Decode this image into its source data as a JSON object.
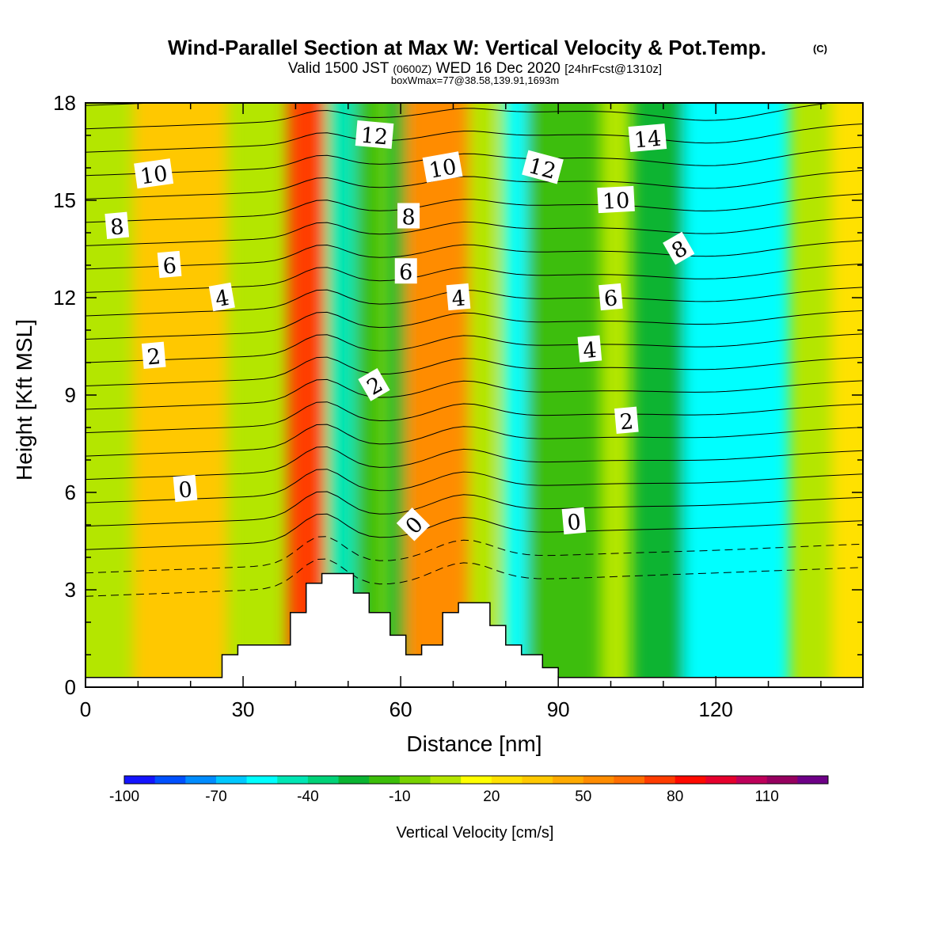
{
  "title": {
    "main": "Wind-Parallel Section at Max W: Vertical Velocity & Pot.Temp.",
    "copyright": "(C)",
    "valid_prefix": "Valid 1500 JST",
    "valid_utc": "(0600Z)",
    "valid_date": "WED 16 Dec 2020",
    "forecast": "[24hrFcst@1310z]",
    "box": "boxWmax=77@38.58,139.91,1693m"
  },
  "chart_data": {
    "type": "heatmap",
    "xlabel": "Distance [nm]",
    "ylabel": "Height [Kft MSL]",
    "xlim": [
      0,
      148
    ],
    "ylim": [
      0,
      18
    ],
    "xticks": [
      0,
      30,
      60,
      90,
      120
    ],
    "yticks": [
      0,
      3,
      6,
      9,
      12,
      15,
      18
    ],
    "colorbar": {
      "title": "Vertical Velocity [cm/s]",
      "min": -100,
      "max": 130,
      "step": 10,
      "tick_labels": [
        -100,
        -70,
        -40,
        -10,
        20,
        50,
        80,
        110
      ],
      "colors": [
        "#1414ff",
        "#0050ff",
        "#008cff",
        "#00c8ff",
        "#00ffff",
        "#00e6b4",
        "#00d278",
        "#0ab432",
        "#3cbe0a",
        "#78d200",
        "#b4e600",
        "#ffff00",
        "#ffe100",
        "#ffc800",
        "#ffaa00",
        "#ff8c00",
        "#ff6e00",
        "#ff3c00",
        "#ff0a00",
        "#e6002d",
        "#be005a",
        "#96005f",
        "#6e0087"
      ]
    },
    "terrain_kft": [
      [
        0,
        0.3
      ],
      [
        26,
        0.3
      ],
      [
        26,
        1.0
      ],
      [
        29,
        1.0
      ],
      [
        29,
        1.3
      ],
      [
        39,
        1.3
      ],
      [
        39,
        2.3
      ],
      [
        42,
        2.3
      ],
      [
        42,
        3.2
      ],
      [
        45,
        3.2
      ],
      [
        45,
        3.5
      ],
      [
        51,
        3.5
      ],
      [
        51,
        2.9
      ],
      [
        54,
        2.9
      ],
      [
        54,
        2.3
      ],
      [
        58,
        2.3
      ],
      [
        58,
        1.6
      ],
      [
        61,
        1.6
      ],
      [
        61,
        1.0
      ],
      [
        64,
        1.0
      ],
      [
        64,
        1.3
      ],
      [
        68,
        1.3
      ],
      [
        68,
        2.3
      ],
      [
        71,
        2.3
      ],
      [
        71,
        2.6
      ],
      [
        77,
        2.6
      ],
      [
        77,
        1.9
      ],
      [
        80,
        1.9
      ],
      [
        80,
        1.3
      ],
      [
        83,
        1.3
      ],
      [
        83,
        1.0
      ],
      [
        87,
        1.0
      ],
      [
        87,
        0.6
      ],
      [
        90,
        0.6
      ],
      [
        90,
        0.3
      ],
      [
        148,
        0.3
      ]
    ],
    "vertical_velocity_bands": [
      {
        "x": 18,
        "width": 18,
        "value": 30
      },
      {
        "x": 42,
        "width": 7,
        "value": 75
      },
      {
        "x": 49,
        "width": 6,
        "value": -50
      },
      {
        "x": 54,
        "width": 5,
        "value": -20
      },
      {
        "x": 60,
        "width": 5,
        "value": -30
      },
      {
        "x": 67,
        "width": 12,
        "value": 50
      },
      {
        "x": 76,
        "width": 5,
        "value": 0
      },
      {
        "x": 83,
        "width": 7,
        "value": -60
      },
      {
        "x": 91,
        "width": 14,
        "value": -20
      },
      {
        "x": 110,
        "width": 12,
        "value": -30
      },
      {
        "x": 124,
        "width": 20,
        "value": -60
      },
      {
        "x": 146,
        "width": 8,
        "value": 20
      }
    ],
    "contour_labels": [
      {
        "text": "0",
        "x": 19,
        "y": 6.1,
        "angle": -5
      },
      {
        "text": "0",
        "x": 62.5,
        "y": 5.0,
        "angle": -45
      },
      {
        "text": "0",
        "x": 93,
        "y": 5.1,
        "angle": -5
      },
      {
        "text": "2",
        "x": 13,
        "y": 10.2,
        "angle": -5
      },
      {
        "text": "2",
        "x": 55,
        "y": 9.3,
        "angle": -30
      },
      {
        "text": "2",
        "x": 103,
        "y": 8.2,
        "angle": -5
      },
      {
        "text": "4",
        "x": 26,
        "y": 12.0,
        "angle": -10
      },
      {
        "text": "4",
        "x": 71,
        "y": 12.0,
        "angle": -5
      },
      {
        "text": "4",
        "x": 96,
        "y": 10.4,
        "angle": -5
      },
      {
        "text": "6",
        "x": 16,
        "y": 13.0,
        "angle": -5
      },
      {
        "text": "6",
        "x": 61,
        "y": 12.8,
        "angle": 0
      },
      {
        "text": "6",
        "x": 100,
        "y": 12.0,
        "angle": -5
      },
      {
        "text": "8",
        "x": 6,
        "y": 14.2,
        "angle": -5
      },
      {
        "text": "8",
        "x": 61.5,
        "y": 14.5,
        "angle": 0
      },
      {
        "text": "8",
        "x": 113,
        "y": 13.5,
        "angle": -30
      },
      {
        "text": "10",
        "x": 13,
        "y": 15.8,
        "angle": -8
      },
      {
        "text": "10",
        "x": 68,
        "y": 16.0,
        "angle": -10
      },
      {
        "text": "10",
        "x": 101,
        "y": 15.0,
        "angle": -3
      },
      {
        "text": "12",
        "x": 55,
        "y": 17.0,
        "angle": 5
      },
      {
        "text": "12",
        "x": 87,
        "y": 16.0,
        "angle": 15
      },
      {
        "text": "14",
        "x": 107,
        "y": 16.9,
        "angle": -5
      }
    ]
  }
}
